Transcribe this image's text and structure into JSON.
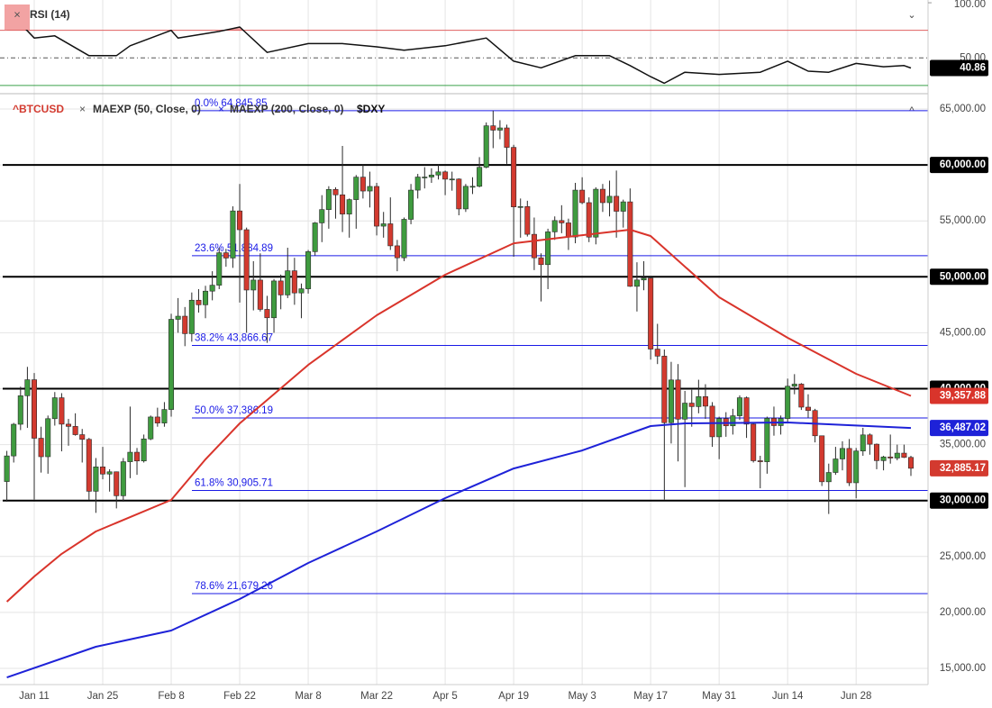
{
  "chart_data": {
    "type": "candlestick",
    "candles": {
      "name": "^BTCUSD",
      "color_up": "#3f9b3f",
      "color_down": "#d33a2f",
      "last_label": "32,885.17",
      "open": [
        31700,
        33990,
        36820,
        39370,
        40800,
        35570,
        33920,
        37320,
        39190,
        36830,
        36630,
        35890,
        35470,
        30830,
        33010,
        32370,
        32570,
        30430,
        33470,
        34320,
        33540,
        35510,
        37470,
        36930,
        38140,
        46200,
        46480,
        44920,
        47910,
        47500,
        48720,
        49250,
        52150,
        51680,
        55890,
        54210,
        48820,
        49710,
        47090,
        46340,
        49630,
        48380,
        50540,
        48560,
        48930,
        52250,
        54820,
        56010,
        57810,
        57330,
        55610,
        56900,
        58910,
        57670,
        58080,
        54530,
        54740,
        52770,
        51700,
        55140,
        57750,
        58920,
        58920,
        59100,
        59380,
        58730,
        58740,
        56070,
        58090,
        58090,
        59790,
        63500,
        63110,
        63310,
        61570,
        56250,
        56280,
        53800,
        51700,
        51090,
        54020,
        55030,
        54820,
        53560,
        57750,
        56630,
        53550,
        57830,
        56630,
        57200,
        55860,
        56700,
        49150,
        49720,
        49880,
        43540,
        42910,
        36960,
        40780,
        37280,
        38710,
        38400,
        39290,
        38440,
        35700,
        37330,
        36680,
        37580,
        39190,
        36830,
        33560,
        33470,
        37350,
        36700,
        37330,
        40220,
        40410,
        38350,
        38050,
        35790,
        31680,
        32510,
        33720,
        34660,
        31590,
        34430,
        35870,
        35040,
        33570,
        33900,
        33800,
        34240,
        33860
      ],
      "high": [
        34440,
        36940,
        40180,
        41950,
        41400,
        36600,
        37600,
        39700,
        39600,
        37300,
        37800,
        36400,
        35600,
        33800,
        34800,
        32800,
        32600,
        33800,
        38400,
        34700,
        35900,
        37600,
        38300,
        38800,
        46700,
        48100,
        47300,
        48600,
        48900,
        49200,
        50500,
        52600,
        52500,
        56300,
        58300,
        54400,
        51400,
        52100,
        48300,
        49800,
        50200,
        52600,
        51700,
        49400,
        52400,
        54900,
        57300,
        58100,
        58000,
        61700,
        57000,
        59100,
        60000,
        59400,
        58400,
        55800,
        57100,
        53300,
        55300,
        58300,
        59200,
        59800,
        59700,
        60000,
        59500,
        59400,
        58800,
        58300,
        58900,
        60700,
        63800,
        64850,
        64000,
        63600,
        61800,
        57000,
        56800,
        55300,
        52100,
        54300,
        55400,
        56400,
        55200,
        58400,
        58900,
        57100,
        58000,
        58300,
        58600,
        59500,
        56900,
        57900,
        51300,
        51400,
        50000,
        45800,
        43500,
        42400,
        42200,
        39800,
        39900,
        40800,
        40400,
        38800,
        37500,
        37900,
        38200,
        39400,
        39300,
        37000,
        34000,
        37500,
        38400,
        37600,
        40900,
        41300,
        40500,
        39500,
        38200,
        35800,
        33300,
        34800,
        35300,
        35500,
        34700,
        36500,
        36000,
        35100,
        34000,
        35900,
        35000,
        35000,
        34000
      ],
      "low": [
        29900,
        33400,
        36300,
        36500,
        30100,
        32500,
        32400,
        36700,
        34400,
        34900,
        35800,
        33400,
        30070,
        28900,
        31900,
        30800,
        29300,
        29900,
        32000,
        32300,
        33400,
        35400,
        36600,
        36600,
        37500,
        45000,
        43800,
        44200,
        46800,
        46300,
        47900,
        48900,
        50900,
        50800,
        47700,
        45000,
        47000,
        46900,
        44100,
        45000,
        47100,
        48100,
        47500,
        46300,
        48500,
        51900,
        53100,
        54300,
        55200,
        54000,
        53500,
        54300,
        57000,
        56200,
        53700,
        53500,
        52400,
        50500,
        51400,
        54700,
        57000,
        57900,
        58400,
        58700,
        57300,
        57700,
        55500,
        55800,
        57400,
        58000,
        59700,
        61500,
        62300,
        60100,
        51800,
        53500,
        53600,
        50600,
        47800,
        48900,
        53300,
        53900,
        52400,
        53000,
        56500,
        53100,
        52900,
        55800,
        55400,
        53500,
        54400,
        49100,
        46900,
        48800,
        42600,
        42200,
        30100,
        35100,
        33500,
        31200,
        36600,
        37800,
        37300,
        34800,
        33700,
        35700,
        35900,
        37200,
        35600,
        33400,
        31100,
        32400,
        35800,
        35900,
        36900,
        39500,
        38100,
        37400,
        35200,
        31300,
        28800,
        32300,
        32700,
        31300,
        30200,
        34000,
        34100,
        32800,
        32700,
        33300,
        33600,
        33800,
        32200
      ],
      "close": [
        33990,
        36820,
        39370,
        40800,
        35570,
        33920,
        37320,
        39190,
        36830,
        36630,
        35890,
        35470,
        30830,
        33010,
        32370,
        32570,
        30430,
        33470,
        34320,
        33540,
        35510,
        37470,
        36930,
        38140,
        46200,
        46480,
        44920,
        47910,
        47500,
        48720,
        49250,
        52150,
        51680,
        55890,
        54210,
        48820,
        49710,
        47090,
        46340,
        49630,
        48380,
        50540,
        48560,
        48930,
        52250,
        54820,
        56010,
        57810,
        57330,
        55610,
        56900,
        58910,
        57670,
        58080,
        54530,
        54740,
        52770,
        51700,
        55140,
        57750,
        58920,
        58920,
        59100,
        59380,
        58730,
        58740,
        56070,
        58090,
        58090,
        59790,
        63500,
        63110,
        63310,
        61570,
        56250,
        56280,
        53800,
        51700,
        51090,
        54020,
        55030,
        54820,
        53560,
        57750,
        56630,
        53550,
        57830,
        56630,
        57200,
        55860,
        56700,
        49150,
        49720,
        49880,
        43540,
        42910,
        36960,
        40780,
        37280,
        38710,
        38400,
        39290,
        38440,
        35700,
        37330,
        36680,
        37580,
        39190,
        36830,
        33560,
        33470,
        37350,
        36700,
        37330,
        40220,
        40410,
        38350,
        38050,
        35790,
        31680,
        32510,
        33720,
        34660,
        31590,
        34430,
        35870,
        35040,
        33570,
        33900,
        33800,
        34240,
        33860,
        32885.17
      ]
    },
    "series": [
      {
        "name": "MAEXP (50, Close, 0)",
        "color": "#d9342b",
        "last_label": "39,357.88",
        "x": [
          0,
          4,
          8,
          13,
          24,
          29,
          34,
          44,
          54,
          64,
          74,
          83,
          91,
          94,
          104,
          114,
          124,
          132
        ],
        "values": [
          20960,
          23210,
          25230,
          27240,
          30060,
          33680,
          36900,
          42130,
          46560,
          50190,
          53000,
          53650,
          54210,
          53650,
          48170,
          44550,
          41330,
          39357.88
        ]
      },
      {
        "name": "MAEXP (200, Close, 0)",
        "color": "#1e22d8",
        "last_label": "36,487.02",
        "x": [
          0,
          13,
          24,
          34,
          44,
          54,
          64,
          74,
          84,
          94,
          99,
          114,
          132
        ],
        "values": [
          14190,
          16930,
          18380,
          21200,
          24420,
          27240,
          30220,
          32870,
          34480,
          36660,
          36900,
          36980,
          36487.02
        ]
      }
    ],
    "compare_symbol": "$DXY",
    "xlim": [
      -1,
      134.5
    ],
    "xticks": [
      {
        "value": 4,
        "label": "Jan 11"
      },
      {
        "value": 14,
        "label": "Jan 25"
      },
      {
        "value": 24,
        "label": "Feb 8"
      },
      {
        "value": 34,
        "label": "Feb 22"
      },
      {
        "value": 44,
        "label": "Mar 8"
      },
      {
        "value": 54,
        "label": "Mar 22"
      },
      {
        "value": 64,
        "label": "Apr 5"
      },
      {
        "value": 74,
        "label": "Apr 19"
      },
      {
        "value": 84,
        "label": "May 3"
      },
      {
        "value": 94,
        "label": "May 17"
      },
      {
        "value": 104,
        "label": "May 31"
      },
      {
        "value": 114,
        "label": "Jun 14"
      },
      {
        "value": 124,
        "label": "Jun 28"
      }
    ],
    "ylim": [
      13550,
      66290
    ],
    "yticks": [
      {
        "value": 65000,
        "label": "65,000.00"
      },
      {
        "value": 60000,
        "label": "60,000.00"
      },
      {
        "value": 55000,
        "label": "55,000.00"
      },
      {
        "value": 50000,
        "label": "50,000.00"
      },
      {
        "value": 45000,
        "label": "45,000.00"
      },
      {
        "value": 40000,
        "label": "40,000.00"
      },
      {
        "value": 35000,
        "label": "35,000.00"
      },
      {
        "value": 30000,
        "label": "30,000.00"
      },
      {
        "value": 25000,
        "label": "25,000.00"
      },
      {
        "value": 20000,
        "label": "20,000.00"
      },
      {
        "value": 15000,
        "label": "15,000.00"
      }
    ],
    "hlines": [
      60000,
      50000,
      40000,
      30000
    ],
    "grid": true,
    "fib": {
      "color": "#1a1ae6",
      "levels": [
        {
          "label": "0.0%",
          "value": 64845.85,
          "value_label": "64,845.85"
        },
        {
          "label": "23.6%",
          "value": 51884.89,
          "value_label": "51,884.89"
        },
        {
          "label": "38.2%",
          "value": 43866.67,
          "value_label": "43,866.67"
        },
        {
          "label": "50.0%",
          "value": 37386.19,
          "value_label": "37,386.19"
        },
        {
          "label": "61.8%",
          "value": 30905.71,
          "value_label": "30,905.71"
        },
        {
          "label": "78.6%",
          "value": 21679.26,
          "value_label": "21,679.26"
        }
      ]
    },
    "rsi": {
      "title": "RSI (14)",
      "color": "#111111",
      "ylim": [
        20,
        102.5
      ],
      "yticks": [
        {
          "value": 100,
          "label": "100.00"
        },
        {
          "value": 50,
          "label": "50.00"
        }
      ],
      "upper_band": 75,
      "lower_band": 25,
      "last_label": "40.86",
      "x": [
        0,
        4,
        7,
        12,
        16,
        18,
        24,
        25,
        31,
        34,
        38,
        44,
        49,
        54,
        58,
        64,
        70,
        74,
        78,
        83,
        88,
        91,
        94,
        96,
        99,
        104,
        110,
        114,
        117,
        120,
        124,
        128,
        131,
        132
      ],
      "values": [
        94,
        68,
        70,
        52,
        52,
        61,
        75,
        68,
        74,
        78,
        55,
        63,
        63,
        60,
        57,
        61,
        68,
        47,
        41,
        52,
        52,
        43,
        33,
        27,
        37,
        35,
        37,
        47,
        38,
        37,
        45,
        42,
        43,
        40.86
      ]
    }
  }
}
